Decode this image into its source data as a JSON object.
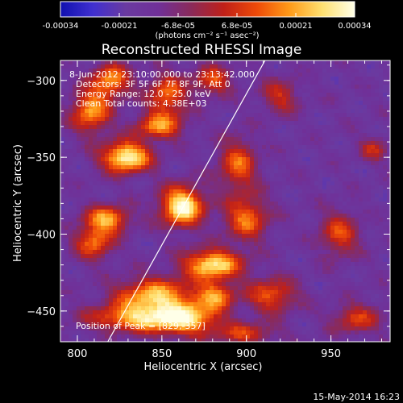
{
  "chart_data": {
    "type": "heatmap",
    "title": "Reconstructed RHESSI Image",
    "xlabel": "Heliocentric X (arcsec)",
    "ylabel": "Heliocentric Y (arcsec)",
    "xlim": [
      790,
      985
    ],
    "ylim": [
      -470,
      -287
    ],
    "xticks": [
      "800",
      "850",
      "900",
      "950"
    ],
    "yticks": [
      "-300",
      "-350",
      "-400",
      "-450"
    ],
    "colorbar": {
      "ticks": [
        "-0.00034",
        "-0.00021",
        "-6.8e-05",
        "6.8e-05",
        "0.00021",
        "0.00034"
      ],
      "unit_label": "(photons cm⁻² s⁻¹ asec⁻²)",
      "range": [
        -0.00034,
        0.00034
      ],
      "colormap": [
        "#1010b0",
        "#4030d0",
        "#6a3aa0",
        "#703098",
        "#8a2a5a",
        "#c02018",
        "#ee4a08",
        "#ff9a18",
        "#ffe070",
        "#ffffe8"
      ]
    },
    "annotations": {
      "time": "8-Jun-2012 23:10:00.000 to 23:13:42.000",
      "detectors": "Detectors: 3F 5F 6F 7F 8F 9F, Att 0",
      "energy": "Energy Range: 12.0 - 25.0 keV",
      "clean": "Clean    Total counts: 4.38E+03",
      "peak": "Position of Peak = [829,-357]"
    },
    "peak": [
      829,
      -357
    ],
    "limb_line": {
      "x1": 818,
      "y1": -470,
      "x2": 911,
      "y2": -287
    },
    "sources": [
      {
        "x": 829,
        "y": -350,
        "amp": 1.0,
        "sx": 10,
        "sy": 7
      },
      {
        "x": 862,
        "y": -382,
        "amp": 1.0,
        "sx": 9,
        "sy": 9
      },
      {
        "x": 880,
        "y": -420,
        "amp": 0.9,
        "sx": 12,
        "sy": 7
      },
      {
        "x": 845,
        "y": -440,
        "amp": 0.75,
        "sx": 16,
        "sy": 8
      },
      {
        "x": 835,
        "y": -455,
        "amp": 0.7,
        "sx": 20,
        "sy": 6
      },
      {
        "x": 865,
        "y": -455,
        "amp": 0.7,
        "sx": 14,
        "sy": 8
      },
      {
        "x": 808,
        "y": -320,
        "amp": 0.7,
        "sx": 8,
        "sy": 10
      },
      {
        "x": 820,
        "y": -300,
        "amp": 0.65,
        "sx": 8,
        "sy": 8
      },
      {
        "x": 853,
        "y": -310,
        "amp": 0.6,
        "sx": 8,
        "sy": 10
      },
      {
        "x": 880,
        "y": -300,
        "amp": 0.5,
        "sx": 8,
        "sy": 7
      },
      {
        "x": 818,
        "y": -390,
        "amp": 0.7,
        "sx": 9,
        "sy": 6
      },
      {
        "x": 810,
        "y": -405,
        "amp": 0.6,
        "sx": 8,
        "sy": 8
      },
      {
        "x": 848,
        "y": -330,
        "amp": 0.6,
        "sx": 10,
        "sy": 6
      },
      {
        "x": 895,
        "y": -355,
        "amp": 0.55,
        "sx": 8,
        "sy": 12
      },
      {
        "x": 900,
        "y": -390,
        "amp": 0.6,
        "sx": 9,
        "sy": 10
      },
      {
        "x": 915,
        "y": -440,
        "amp": 0.55,
        "sx": 10,
        "sy": 8
      },
      {
        "x": 882,
        "y": -440,
        "amp": 0.6,
        "sx": 8,
        "sy": 6
      },
      {
        "x": 955,
        "y": -400,
        "amp": 0.5,
        "sx": 8,
        "sy": 10
      },
      {
        "x": 965,
        "y": -455,
        "amp": 0.45,
        "sx": 10,
        "sy": 7
      },
      {
        "x": 920,
        "y": -310,
        "amp": 0.4,
        "sx": 8,
        "sy": 8
      },
      {
        "x": 900,
        "y": -465,
        "amp": 0.45,
        "sx": 12,
        "sy": 5
      },
      {
        "x": 975,
        "y": -345,
        "amp": 0.35,
        "sx": 6,
        "sy": 6
      }
    ],
    "grid": false
  },
  "footer": {
    "date": "15-May-2014 16:23"
  }
}
